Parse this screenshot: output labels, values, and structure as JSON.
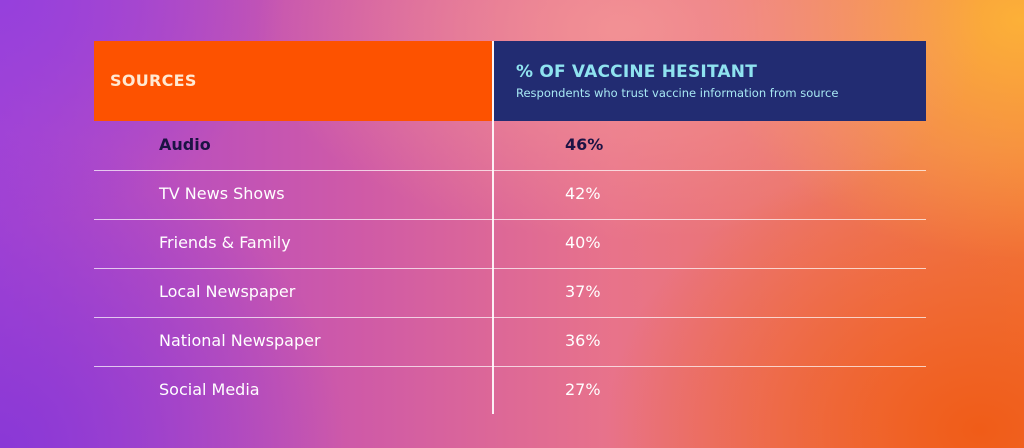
{
  "chart_data": {
    "type": "table",
    "columns": [
      {
        "title": "SOURCES"
      },
      {
        "title": "% OF VACCINE HESITANT",
        "subtitle": "Respondents who trust vaccine information from source"
      }
    ],
    "rows": [
      {
        "source": "Audio",
        "value": "46%",
        "highlight": true
      },
      {
        "source": "TV News Shows",
        "value": "42%",
        "highlight": false
      },
      {
        "source": "Friends & Family",
        "value": "40%",
        "highlight": false
      },
      {
        "source": "Local Newspaper",
        "value": "37%",
        "highlight": false
      },
      {
        "source": "National Newspaper",
        "value": "36%",
        "highlight": false
      },
      {
        "source": "Social Media",
        "value": "27%",
        "highlight": false
      }
    ]
  },
  "colors": {
    "header_left_bg": "#fd5200",
    "header_right_bg": "#222c72",
    "header_title_text": "#8fe3f0",
    "highlight_text": "#1c1344",
    "body_text": "#ffffff"
  }
}
